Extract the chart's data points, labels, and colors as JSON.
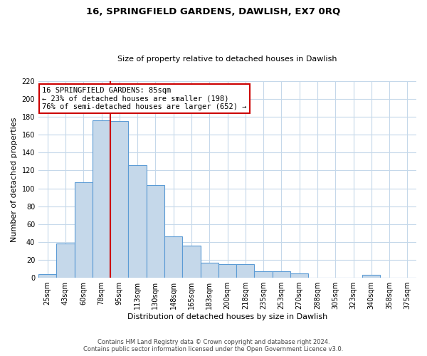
{
  "title": "16, SPRINGFIELD GARDENS, DAWLISH, EX7 0RQ",
  "subtitle": "Size of property relative to detached houses in Dawlish",
  "xlabel": "Distribution of detached houses by size in Dawlish",
  "ylabel": "Number of detached properties",
  "bar_labels": [
    "25sqm",
    "43sqm",
    "60sqm",
    "78sqm",
    "95sqm",
    "113sqm",
    "130sqm",
    "148sqm",
    "165sqm",
    "183sqm",
    "200sqm",
    "218sqm",
    "235sqm",
    "253sqm",
    "270sqm",
    "288sqm",
    "305sqm",
    "323sqm",
    "340sqm",
    "358sqm",
    "375sqm"
  ],
  "bar_values": [
    4,
    38,
    107,
    176,
    175,
    126,
    104,
    46,
    36,
    17,
    15,
    15,
    7,
    7,
    5,
    0,
    0,
    0,
    3,
    0,
    0
  ],
  "bar_color": "#c5d8ea",
  "bar_edge_color": "#5b9bd5",
  "ylim": [
    0,
    220
  ],
  "yticks": [
    0,
    20,
    40,
    60,
    80,
    100,
    120,
    140,
    160,
    180,
    200,
    220
  ],
  "annotation_title": "16 SPRINGFIELD GARDENS: 85sqm",
  "annotation_line1": "← 23% of detached houses are smaller (198)",
  "annotation_line2": "76% of semi-detached houses are larger (652) →",
  "annotation_box_color": "#ffffff",
  "annotation_box_edge": "#cc0000",
  "property_line_color": "#cc0000",
  "footer1": "Contains HM Land Registry data © Crown copyright and database right 2024.",
  "footer2": "Contains public sector information licensed under the Open Government Licence v3.0.",
  "background_color": "#ffffff",
  "grid_color": "#c5d8ea",
  "title_fontsize": 9.5,
  "subtitle_fontsize": 8,
  "tick_fontsize": 7,
  "axis_label_fontsize": 8,
  "annotation_fontsize": 7.5,
  "footer_fontsize": 6
}
